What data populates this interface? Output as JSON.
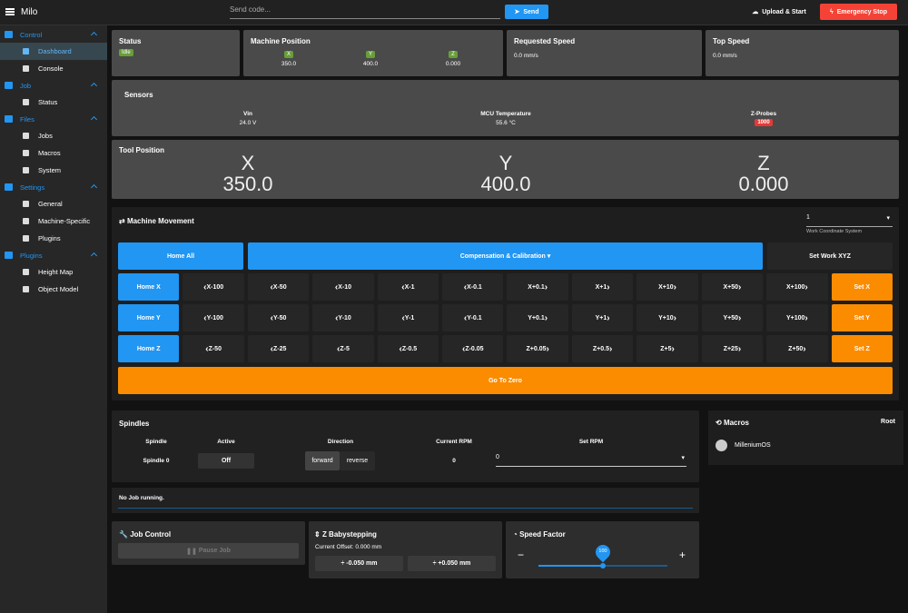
{
  "topbar": {
    "title": "Milo",
    "code_placeholder": "Send code...",
    "send": "Send",
    "upload": "Upload & Start",
    "emergency": "Emergency Stop"
  },
  "sidebar": {
    "sections": [
      {
        "label": "Control",
        "items": [
          "Dashboard",
          "Console"
        ]
      },
      {
        "label": "Job",
        "items": [
          "Status"
        ]
      },
      {
        "label": "Files",
        "items": [
          "Jobs",
          "Macros",
          "System"
        ]
      },
      {
        "label": "Settings",
        "items": [
          "General",
          "Machine-Specific",
          "Plugins"
        ]
      },
      {
        "label": "Plugins",
        "items": [
          "Height Map",
          "Object Model"
        ]
      }
    ]
  },
  "status": {
    "title": "Status",
    "state": "Idle"
  },
  "machine_position": {
    "title": "Machine Position",
    "axes": [
      {
        "label": "X",
        "value": "350.0"
      },
      {
        "label": "Y",
        "value": "400.0"
      },
      {
        "label": "Z",
        "value": "0.000"
      }
    ]
  },
  "requested_speed": {
    "title": "Requested Speed",
    "value": "0.0 mm/s"
  },
  "top_speed": {
    "title": "Top Speed",
    "value": "0.0 mm/s"
  },
  "sensors": {
    "title": "Sensors",
    "items": [
      {
        "label": "Vin",
        "value": "24.0 V"
      },
      {
        "label": "MCU Temperature",
        "value": "55.6 °C"
      },
      {
        "label": "Z-Probes",
        "value": "1000"
      }
    ]
  },
  "tool_position": {
    "title": "Tool Position",
    "axes": [
      {
        "label": "X",
        "value": "350.0"
      },
      {
        "label": "Y",
        "value": "400.0"
      },
      {
        "label": "Z",
        "value": "0.000"
      }
    ]
  },
  "movement": {
    "title": "Machine Movement",
    "wcs": "1",
    "wcs_label": "Work Coordinate System",
    "home_all": "Home All",
    "compensation": "Compensation & Calibration",
    "set_work": "Set Work XYZ",
    "rows": [
      {
        "home": "Home X",
        "buttons": [
          "X-100",
          "X-50",
          "X-10",
          "X-1",
          "X-0.1",
          "X+0.1",
          "X+1",
          "X+10",
          "X+50",
          "X+100"
        ],
        "set": "Set X"
      },
      {
        "home": "Home Y",
        "buttons": [
          "Y-100",
          "Y-50",
          "Y-10",
          "Y-1",
          "Y-0.1",
          "Y+0.1",
          "Y+1",
          "Y+10",
          "Y+50",
          "Y+100"
        ],
        "set": "Set Y"
      },
      {
        "home": "Home Z",
        "buttons": [
          "Z-50",
          "Z-25",
          "Z-5",
          "Z-0.5",
          "Z-0.05",
          "Z+0.05",
          "Z+0.5",
          "Z+5",
          "Z+25",
          "Z+50"
        ],
        "set": "Set Z"
      }
    ],
    "go_to_zero": "Go To Zero"
  },
  "spindles": {
    "title": "Spindles",
    "headers": [
      "Spindle",
      "Active",
      "Direction",
      "Current RPM",
      "Set RPM"
    ],
    "row": {
      "name": "Spindle 0",
      "active": "Off",
      "forward": "forward",
      "reverse": "reverse",
      "current_rpm": "0",
      "set_rpm": "0"
    }
  },
  "job_status": "No Job running.",
  "job_control": {
    "title": "Job Control",
    "pause": "Pause Job"
  },
  "babystepping": {
    "title": "Z Babystepping",
    "offset": "Current Offset: 0.000 mm",
    "minus": "-0.050 mm",
    "plus": "+0.050 mm"
  },
  "speed_factor": {
    "title": "Speed Factor",
    "value": "100"
  },
  "macros": {
    "title": "Macros",
    "root": "Root",
    "items": [
      "MilleniumOS"
    ]
  }
}
